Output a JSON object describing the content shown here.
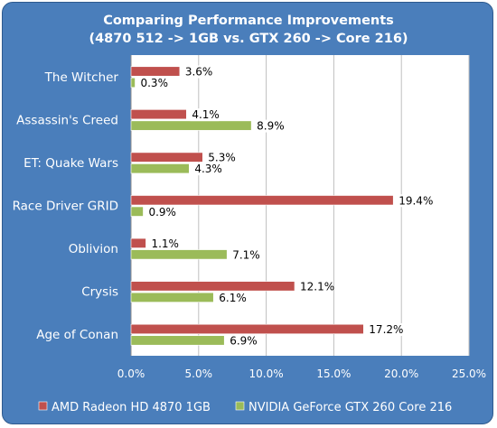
{
  "chart_data": {
    "type": "bar",
    "orientation": "horizontal",
    "title": "Comparing Performance Improvements",
    "subtitle": "(4870 512 -> 1GB vs. GTX 260 -> Core 216)",
    "categories": [
      "The Witcher",
      "Assassin's Creed",
      "ET: Quake Wars",
      "Race Driver GRID",
      "Oblivion",
      "Crysis",
      "Age of Conan"
    ],
    "series": [
      {
        "name": "AMD Radeon HD 4870 1GB",
        "color": "#c0504d",
        "values": [
          3.6,
          4.1,
          5.3,
          19.4,
          1.1,
          12.1,
          17.2
        ]
      },
      {
        "name": "NVIDIA GeForce GTX 260 Core 216",
        "color": "#9bbb59",
        "values": [
          0.3,
          8.9,
          4.3,
          0.9,
          7.1,
          6.1,
          6.9
        ]
      }
    ],
    "value_format": "%",
    "xlim": [
      0,
      25
    ],
    "x_ticks": [
      0,
      5,
      10,
      15,
      20,
      25
    ],
    "x_tick_labels": [
      "0.0%",
      "5.0%",
      "10.0%",
      "15.0%",
      "20.0%",
      "25.0%"
    ],
    "grid": true,
    "legend_position": "bottom",
    "colors": {
      "frame": "#4a7ebb",
      "plot_bg": "#ffffff",
      "grid": "#bfbfbf",
      "text": "#ffffff"
    }
  }
}
